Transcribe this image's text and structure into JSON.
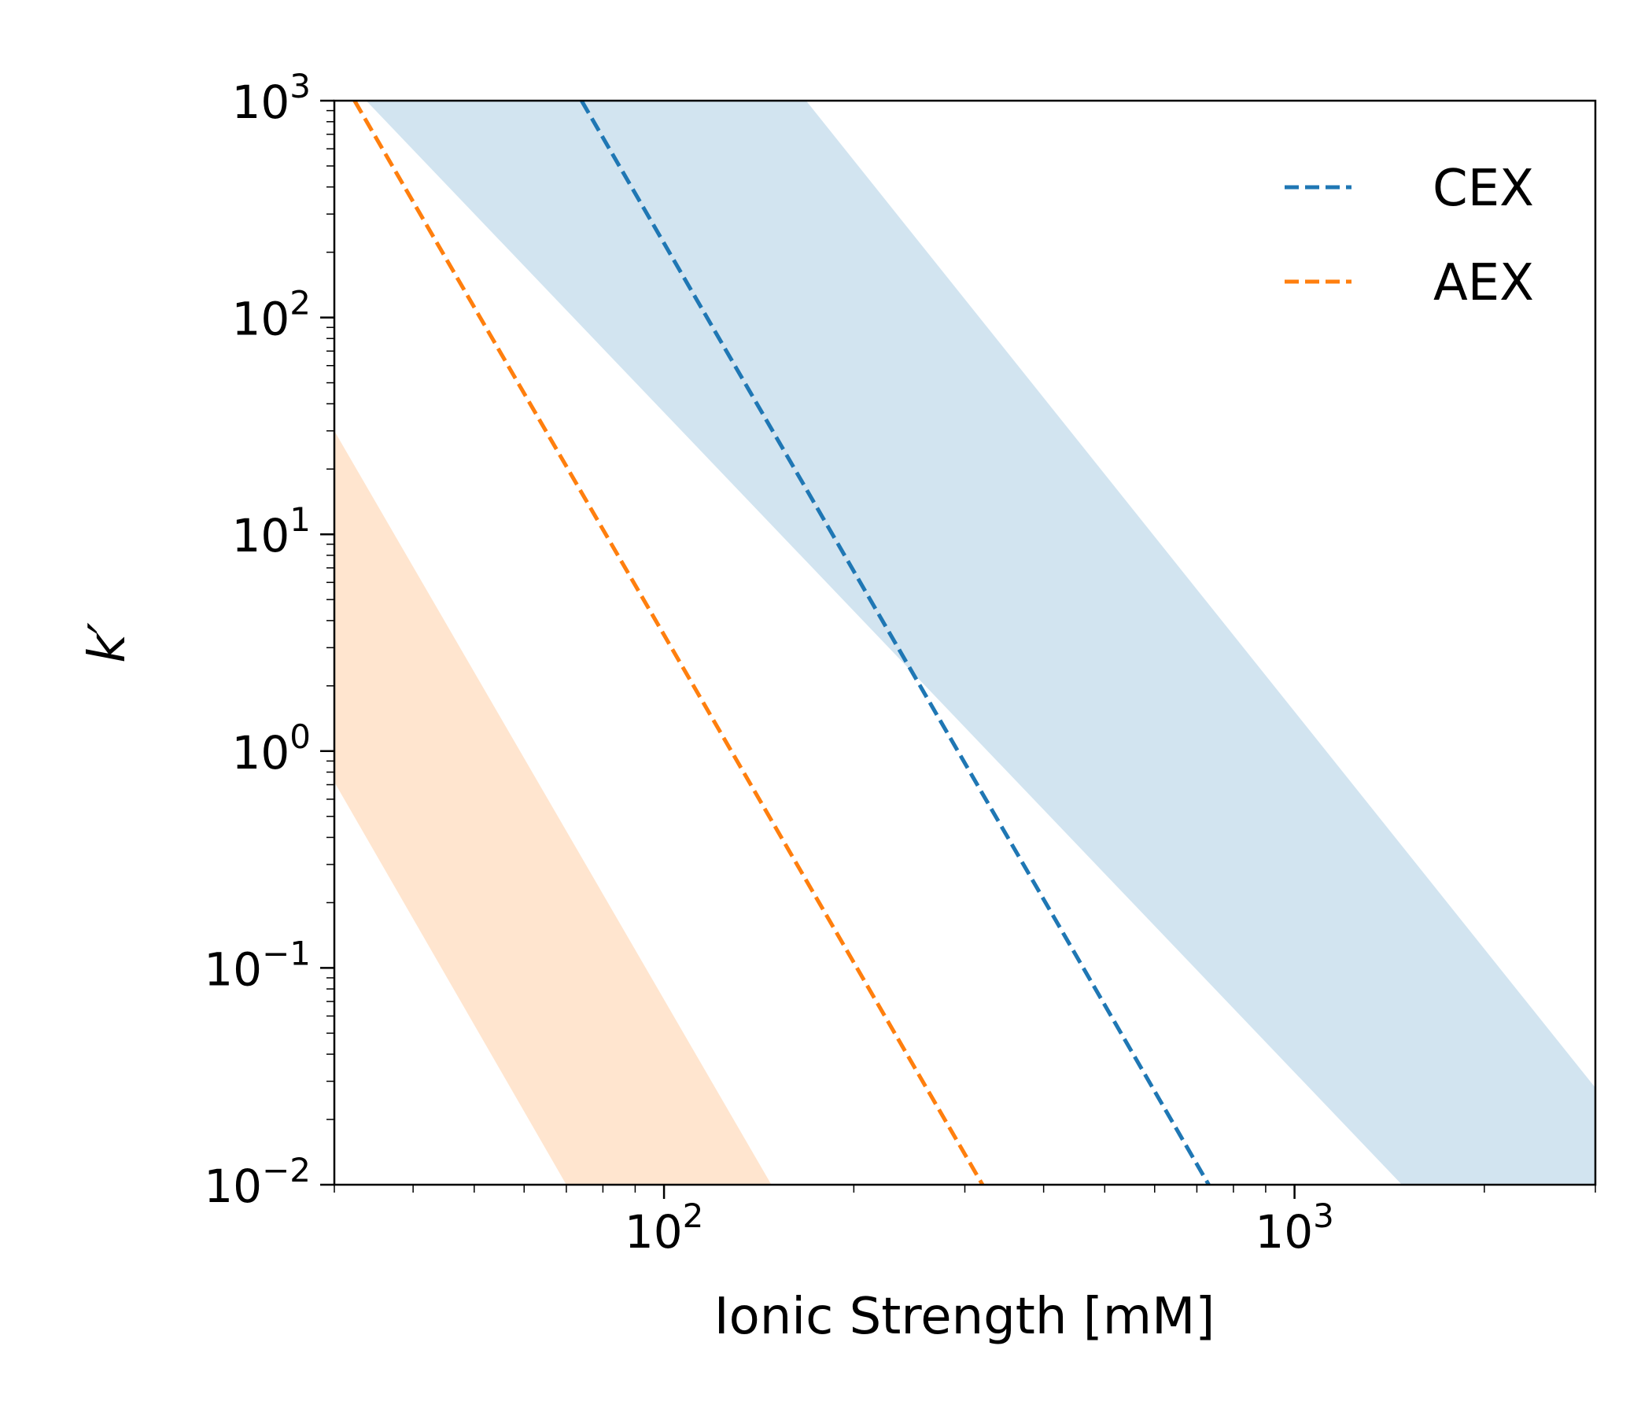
{
  "chart_data": {
    "type": "line",
    "xlabel": "Ionic Strength [mM]",
    "ylabel": "k′",
    "xscale": "log",
    "yscale": "log",
    "xlim": [
      30,
      3000
    ],
    "ylim": [
      0.01,
      1000
    ],
    "grid": false,
    "legend_position": "top-right",
    "x_ticks": [
      {
        "value": 100,
        "base": "10",
        "exp": "2"
      },
      {
        "value": 1000,
        "base": "10",
        "exp": "3"
      }
    ],
    "y_ticks": [
      {
        "value": 0.01,
        "base": "10",
        "exp": "−2"
      },
      {
        "value": 0.1,
        "base": "10",
        "exp": "−1"
      },
      {
        "value": 1,
        "base": "10",
        "exp": "0"
      },
      {
        "value": 10,
        "base": "10",
        "exp": "1"
      },
      {
        "value": 100,
        "base": "10",
        "exp": "2"
      },
      {
        "value": 1000,
        "base": "10",
        "exp": "3"
      }
    ],
    "series": [
      {
        "name": "CEX",
        "color": "#1f77b4",
        "style": "dashed",
        "x": [
          74,
          731
        ],
        "y": [
          1000,
          0.01
        ],
        "band": {
          "color": "#1f77b4",
          "opacity": 0.2,
          "upper": {
            "x": [
              168,
              3000
            ],
            "y": [
              1000,
              0.028
            ]
          },
          "lower": {
            "x": [
              33.7,
              1480
            ],
            "y": [
              1000,
              0.01
            ]
          },
          "note_upper_end": "runs to x=3000 at y=0.028"
        }
      },
      {
        "name": "AEX",
        "color": "#ff7f0e",
        "style": "dashed",
        "x": [
          32.3,
          320
        ],
        "y": [
          1000,
          0.01
        ],
        "band": {
          "color": "#ff7f0e",
          "opacity": 0.2,
          "upper": {
            "x": [
              30,
              148
            ],
            "y": [
              30,
              0.01
            ]
          },
          "lower": {
            "x": [
              30,
              70
            ],
            "y": [
              0.72,
              0.01
            ]
          }
        }
      }
    ]
  }
}
